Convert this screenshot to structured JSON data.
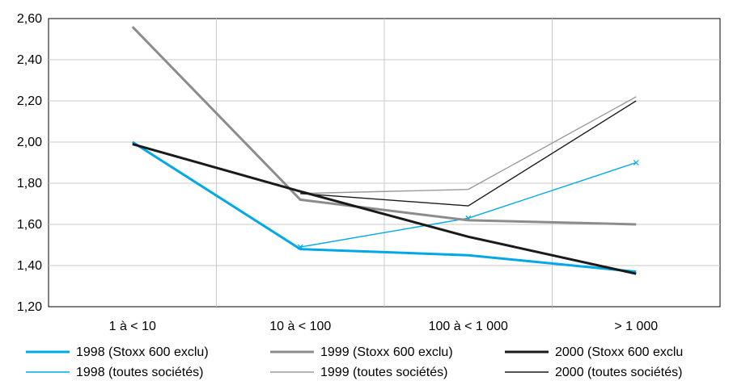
{
  "chart_data": {
    "type": "line",
    "categories": [
      "1 à < 10",
      "10 à < 100",
      "100 à < 1 000",
      "> 1 000"
    ],
    "ylim": [
      1.2,
      2.6
    ],
    "yticks": [
      "1,20",
      "1,40",
      "1,60",
      "1,80",
      "2,00",
      "2,20",
      "2,40",
      "2,60"
    ],
    "grid": true,
    "legend_position": "bottom",
    "series": [
      {
        "name": "1998 (Stoxx 600 exclu)",
        "values": [
          2.0,
          1.48,
          1.45,
          1.37
        ],
        "color": "#00a8e8",
        "width": 3,
        "markers": false
      },
      {
        "name": "1998 (toutes sociétés)",
        "values": [
          null,
          1.49,
          1.63,
          1.9
        ],
        "color": "#00a8e8",
        "width": 1.4,
        "markers": true
      },
      {
        "name": "1999 (Stoxx 600 exclu)",
        "values": [
          2.56,
          1.72,
          1.62,
          1.6
        ],
        "color": "#8c8c8c",
        "width": 3,
        "markers": false
      },
      {
        "name": "1999 (toutes sociétés)",
        "values": [
          null,
          1.75,
          1.77,
          2.22
        ],
        "color": "#9a9a9a",
        "width": 1.4,
        "markers": false
      },
      {
        "name": "2000 (Stoxx 600 exclu",
        "values": [
          1.99,
          1.76,
          1.54,
          1.36
        ],
        "color": "#1a1a1a",
        "width": 3,
        "markers": false
      },
      {
        "name": "2000 (toutes sociétés)",
        "values": [
          null,
          1.75,
          1.69,
          2.2
        ],
        "color": "#1a1a1a",
        "width": 1.4,
        "markers": false
      }
    ]
  }
}
